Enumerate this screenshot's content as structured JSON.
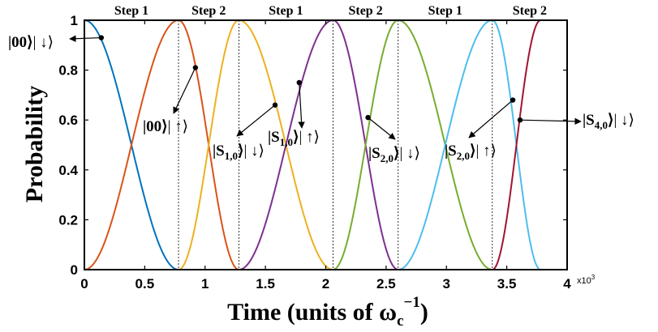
{
  "chart_data": {
    "type": "line",
    "xlabel": "Time (units of ω",
    "xlabel_sub": "c",
    "xlabel_sup": "−1",
    "xlabel_close": ")",
    "ylabel": "Probability",
    "x_multiplier": "x10",
    "x_multiplier_exp": "3",
    "xlim": [
      0,
      4
    ],
    "ylim": [
      0,
      1
    ],
    "xticks": [
      "0",
      "0.5",
      "1",
      "1.5",
      "2",
      "2.5",
      "3",
      "3.5",
      "4"
    ],
    "yticks": [
      "0",
      "0.2",
      "0.4",
      "0.6",
      "0.8",
      "1"
    ],
    "step_boundaries": [
      0.78,
      1.28,
      2.06,
      2.6,
      3.38
    ],
    "step_labels": [
      {
        "label": "Step 1",
        "x": 0.39
      },
      {
        "label": "Step 2",
        "x": 1.03
      },
      {
        "label": "Step 1",
        "x": 1.67
      },
      {
        "label": "Step 2",
        "x": 2.33
      },
      {
        "label": "Step 1",
        "x": 2.99
      },
      {
        "label": "Step 2",
        "x": 3.69
      }
    ],
    "series": [
      {
        "color": "#0072BD",
        "segments": [
          {
            "kind": "fall",
            "x0": 0,
            "x1": 0.78
          }
        ]
      },
      {
        "color": "#D95319",
        "segments": [
          {
            "kind": "rise",
            "x0": 0,
            "x1": 0.78
          },
          {
            "kind": "fall",
            "x0": 0.78,
            "x1": 1.28
          }
        ]
      },
      {
        "color": "#EDB120",
        "segments": [
          {
            "kind": "rise",
            "x0": 0.78,
            "x1": 1.28
          },
          {
            "kind": "fall",
            "x0": 1.28,
            "x1": 2.06
          }
        ]
      },
      {
        "color": "#7E2F8E",
        "segments": [
          {
            "kind": "rise",
            "x0": 1.28,
            "x1": 2.06
          },
          {
            "kind": "fall",
            "x0": 2.06,
            "x1": 2.6
          }
        ]
      },
      {
        "color": "#77AC30",
        "segments": [
          {
            "kind": "rise",
            "x0": 2.06,
            "x1": 2.6
          },
          {
            "kind": "fall",
            "x0": 2.6,
            "x1": 3.38
          }
        ]
      },
      {
        "color": "#4DBEEE",
        "segments": [
          {
            "kind": "rise",
            "x0": 2.6,
            "x1": 3.38
          },
          {
            "kind": "fall",
            "x0": 3.38,
            "x1": 3.78
          }
        ]
      },
      {
        "color": "#A2142F",
        "segments": [
          {
            "kind": "rise",
            "x0": 3.38,
            "x1": 3.78
          }
        ]
      }
    ],
    "annotations": [
      {
        "ket": "|00⟩",
        "spin": "| ↓⟩",
        "point": [
          0.14,
          0.93
        ]
      },
      {
        "ket": "|00⟩",
        "spin": "| ↑⟩",
        "point": [
          0.92,
          0.81
        ]
      },
      {
        "ket": "|S",
        "sub": "1,0",
        "close": "⟩",
        "spin": "| ↓⟩",
        "point": [
          1.58,
          0.66
        ]
      },
      {
        "ket": "|S",
        "sub": "1,0",
        "close": "⟩",
        "spin": "| ↑⟩",
        "point": [
          1.78,
          0.75
        ]
      },
      {
        "ket": "|S",
        "sub": "2,0",
        "close": "⟩",
        "spin": "| ↓⟩",
        "point": [
          2.35,
          0.61
        ]
      },
      {
        "ket": "|S",
        "sub": "2,0",
        "close": "⟩",
        "spin": "| ↑⟩",
        "point": [
          3.55,
          0.68
        ]
      },
      {
        "ket": "|S",
        "sub": "4,0",
        "close": "⟩",
        "spin": "| ↓⟩",
        "point": [
          3.61,
          0.6
        ]
      }
    ]
  }
}
